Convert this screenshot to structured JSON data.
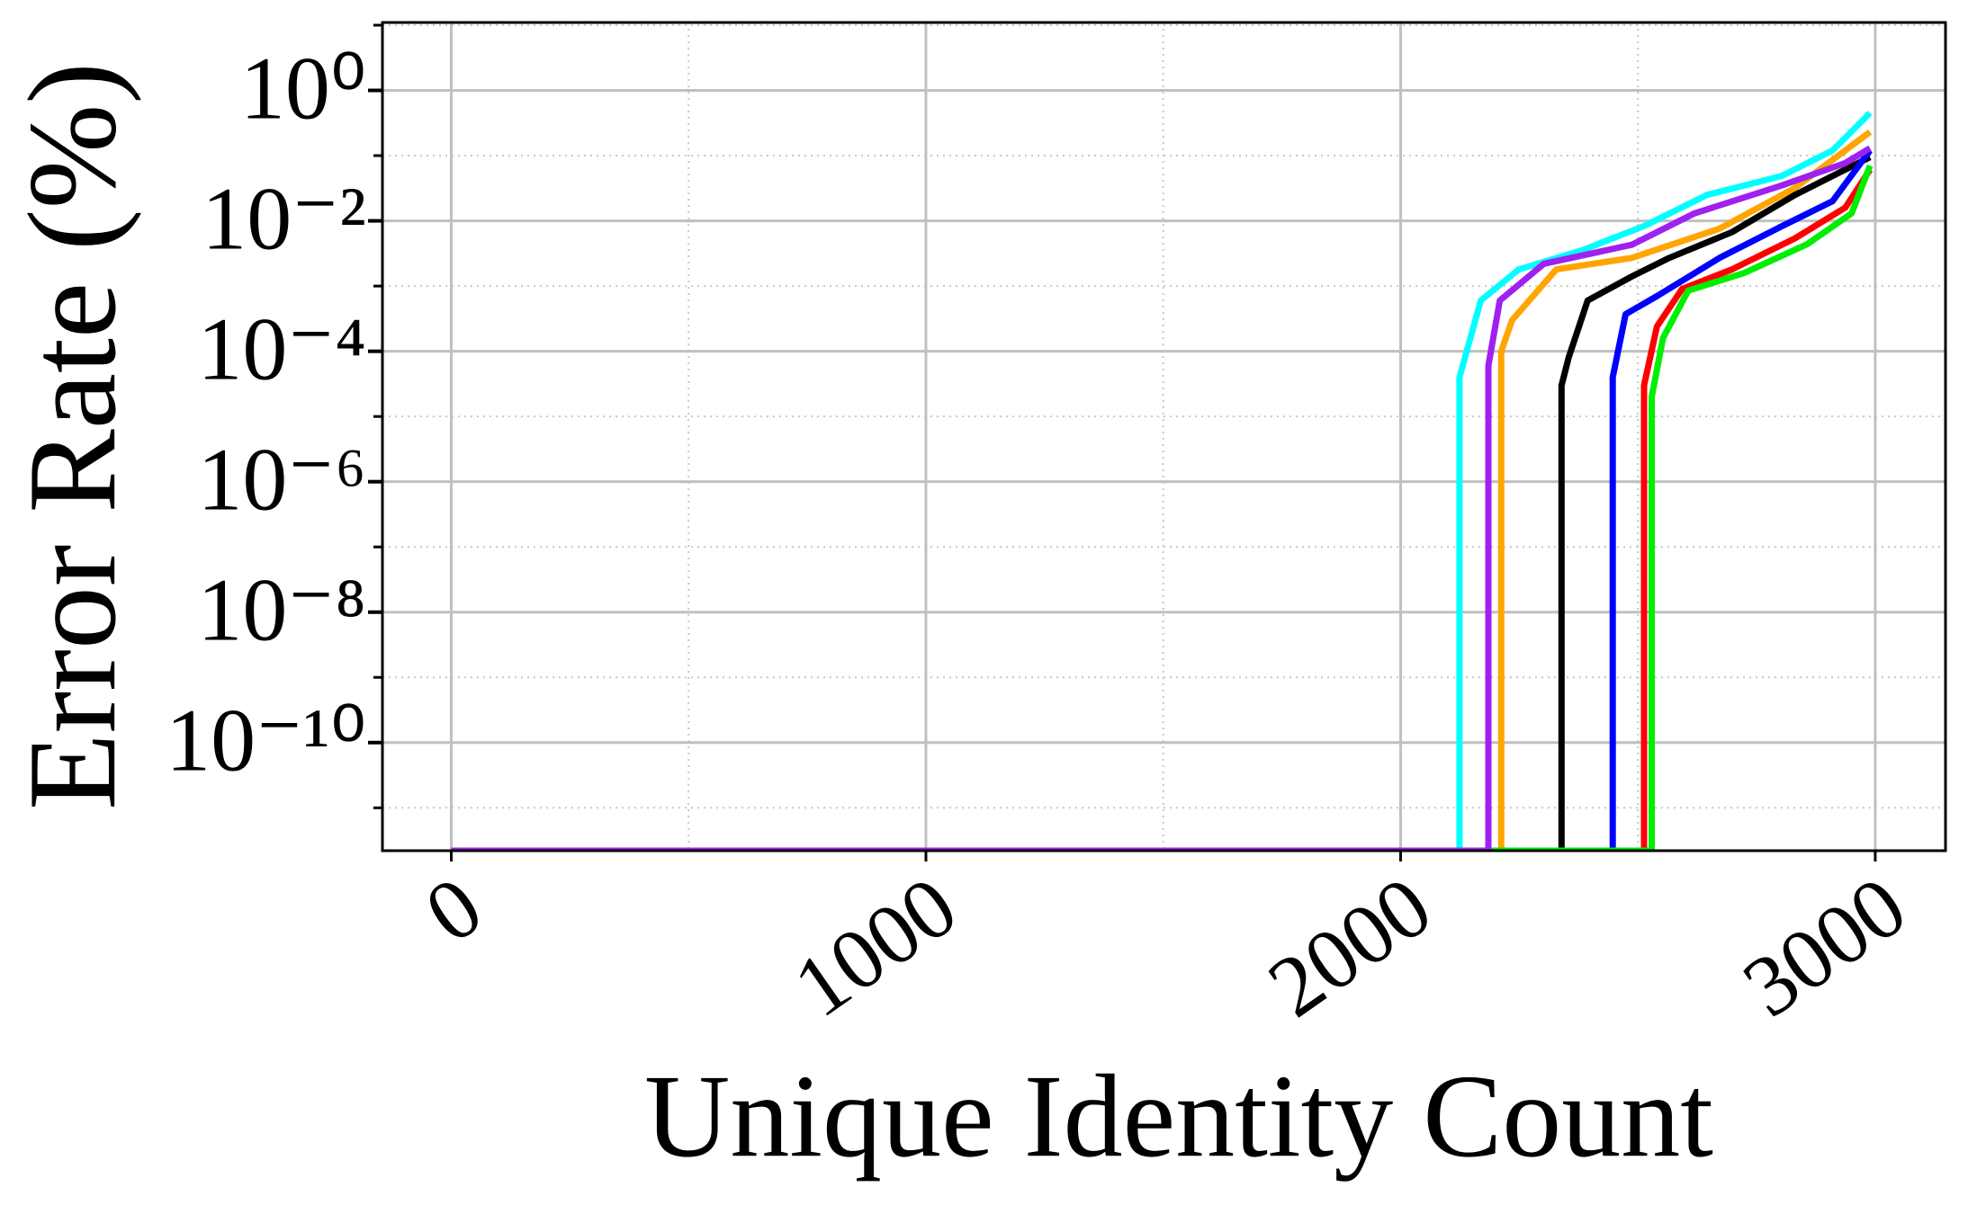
{
  "chart_data": {
    "type": "line",
    "x_label": "Unique Identity Count",
    "y_label": "Error Rate (%)",
    "yscale": "log",
    "grid": true,
    "xlim": [
      -145,
      3148
    ],
    "ylim": [
      2.2e-12,
      11
    ],
    "xticks": [
      0,
      1000,
      2000,
      3000
    ],
    "xticks_minor": [
      500,
      1500,
      2500
    ],
    "yticks": [
      {
        "value": 1e-10,
        "label": "10⁻¹⁰"
      },
      {
        "value": 1e-08,
        "label": "10⁻⁸"
      },
      {
        "value": 1e-06,
        "label": "10⁻⁶"
      },
      {
        "value": 0.0001,
        "label": "10⁻⁴"
      },
      {
        "value": 0.01,
        "label": "10⁻²"
      },
      {
        "value": 1,
        "label": "10⁰"
      }
    ],
    "yticks_minor": [
      1e-11,
      1e-09,
      1e-07,
      1e-05,
      0.001,
      0.1,
      10
    ],
    "series": [
      {
        "color": "#00ffff",
        "x": [
          0,
          2124,
          2124,
          2169,
          2249,
          2381,
          2513,
          2646,
          2804,
          2910,
          2989
        ],
        "values": [
          2.2e-12,
          2.2e-12,
          4e-05,
          0.0006,
          0.0018,
          0.0035,
          0.0083,
          0.025,
          0.049,
          0.12,
          0.45
        ]
      },
      {
        "color": "#ffa500",
        "x": [
          0,
          2212,
          2212,
          2235,
          2328,
          2487,
          2672,
          2831,
          2989
        ],
        "values": [
          2.2e-12,
          2.2e-12,
          0.0001,
          0.0003,
          0.0018,
          0.0027,
          0.0076,
          0.032,
          0.23
        ]
      },
      {
        "color": "#000000",
        "x": [
          0,
          2339,
          2339,
          2354,
          2394,
          2487,
          2566,
          2698,
          2831,
          2989
        ],
        "values": [
          2.2e-12,
          2.2e-12,
          3e-05,
          8e-05,
          0.0006,
          0.0014,
          0.0027,
          0.0067,
          0.025,
          0.095
        ]
      },
      {
        "color": "#0000ff",
        "x": [
          0,
          2447,
          2447,
          2474,
          2540,
          2672,
          2804,
          2910,
          2989
        ],
        "values": [
          2.2e-12,
          2.2e-12,
          4e-05,
          0.00037,
          0.0007,
          0.0027,
          0.0083,
          0.02,
          0.12
        ]
      },
      {
        "color": "#ff0000",
        "x": [
          0,
          2513,
          2513,
          2540,
          2593,
          2698,
          2831,
          2937,
          2989
        ],
        "values": [
          2.2e-12,
          2.2e-12,
          3e-05,
          0.00024,
          0.0009,
          0.0018,
          0.0054,
          0.016,
          0.061
        ]
      },
      {
        "color": "#00ee00",
        "x": [
          0,
          2529,
          2529,
          2553,
          2606,
          2725,
          2857,
          2950,
          2989
        ],
        "values": [
          2.2e-12,
          2.2e-12,
          2e-05,
          0.00016,
          0.00085,
          0.0016,
          0.0044,
          0.013,
          0.07
        ]
      },
      {
        "color": "#a020f0",
        "x": [
          0,
          2185,
          2185,
          2209,
          2302,
          2487,
          2619,
          2804,
          2937,
          2989
        ],
        "values": [
          2.2e-12,
          2.2e-12,
          6e-05,
          0.0006,
          0.0022,
          0.0043,
          0.013,
          0.035,
          0.077,
          0.13
        ]
      }
    ]
  }
}
